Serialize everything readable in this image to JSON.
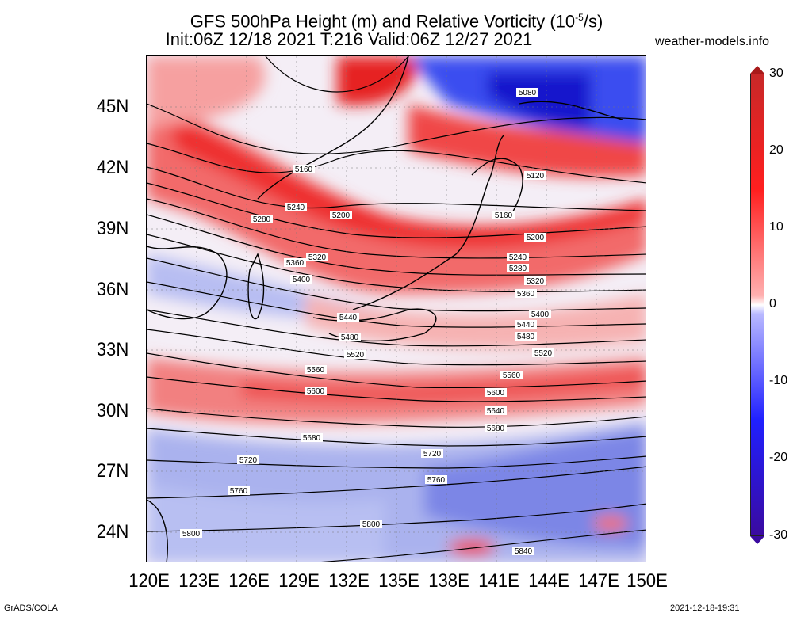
{
  "title_line1_pre": "GFS 500hPa Height (m) and Relative Vorticity (10",
  "title_exp": "-5",
  "title_line1_post": "/s)",
  "title_line2": "Init:06Z 12/18 2021 T:216 Valid:06Z 12/27 2021",
  "site": "weather-models.info",
  "lat_labels": [
    "45N",
    "42N",
    "39N",
    "36N",
    "33N",
    "30N",
    "27N",
    "24N"
  ],
  "lon_labels": [
    "120E",
    "123E",
    "126E",
    "129E",
    "132E",
    "135E",
    "138E",
    "141E",
    "144E",
    "147E",
    "150E"
  ],
  "colorbar": {
    "ticks": [
      "30",
      "20",
      "10",
      "0",
      "-10",
      "-20",
      "-30"
    ],
    "range": [
      -30,
      30
    ],
    "colors": [
      "#3a0aa0",
      "#2020ff",
      "#b8b8ff",
      "#ffffff",
      "#ffb0b0",
      "#ff1f1f",
      "#c82828"
    ]
  },
  "contour_labels": [
    {
      "v": "5080"
    },
    {
      "v": "5120"
    },
    {
      "v": "5160"
    },
    {
      "v": "5160"
    },
    {
      "v": "5200"
    },
    {
      "v": "5200"
    },
    {
      "v": "5240"
    },
    {
      "v": "5240"
    },
    {
      "v": "5280"
    },
    {
      "v": "5280"
    },
    {
      "v": "5320"
    },
    {
      "v": "5320"
    },
    {
      "v": "5360"
    },
    {
      "v": "5360"
    },
    {
      "v": "5400"
    },
    {
      "v": "5400"
    },
    {
      "v": "5440"
    },
    {
      "v": "5440"
    },
    {
      "v": "5480"
    },
    {
      "v": "5480"
    },
    {
      "v": "5520"
    },
    {
      "v": "5520"
    },
    {
      "v": "5560"
    },
    {
      "v": "5560"
    },
    {
      "v": "5600"
    },
    {
      "v": "5600"
    },
    {
      "v": "5640"
    },
    {
      "v": "5680"
    },
    {
      "v": "5680"
    },
    {
      "v": "5720"
    },
    {
      "v": "5720"
    },
    {
      "v": "5760"
    },
    {
      "v": "5760"
    },
    {
      "v": "5800"
    },
    {
      "v": "5800"
    },
    {
      "v": "5840"
    }
  ],
  "footer_left": "GrADS/COLA",
  "footer_right": "2021-12-18-19:31"
}
